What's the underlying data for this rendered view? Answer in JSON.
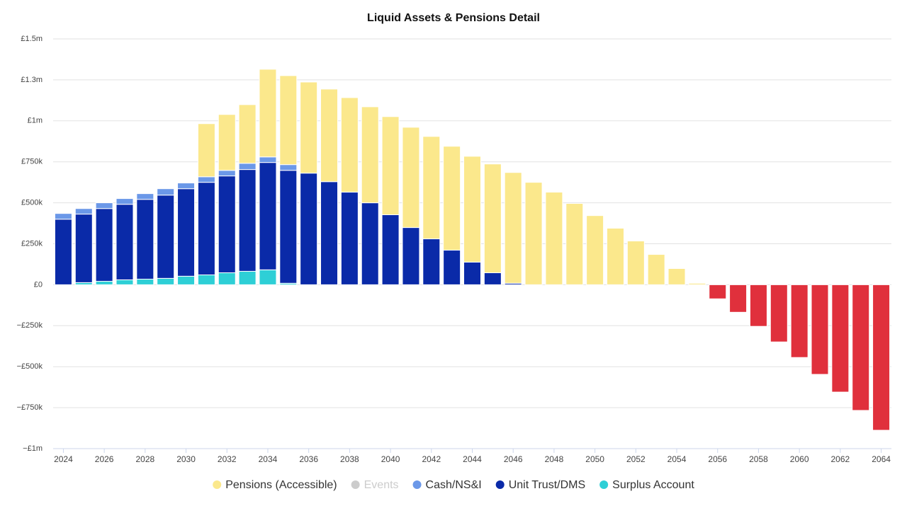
{
  "chart_data": {
    "type": "stacked_bar",
    "title": "Liquid Assets & Pensions Detail",
    "categories": [
      "2024",
      null,
      "2026",
      null,
      "2028",
      null,
      "2030",
      null,
      "2032",
      null,
      "2034",
      null,
      "2036",
      null,
      "2038",
      null,
      "2040",
      null,
      "2042",
      null,
      "2044",
      null,
      "2046",
      null,
      "2048",
      null,
      "2050",
      null,
      "2052",
      null,
      "2054",
      null,
      "2056",
      null,
      "2058",
      null,
      "2060",
      null,
      "2062",
      null,
      "2064"
    ],
    "ylim": [
      -1000000,
      1500000
    ],
    "yticks": [
      {
        "value": -1000000,
        "label": "−£1m"
      },
      {
        "value": -750000,
        "label": "−£750k"
      },
      {
        "value": -500000,
        "label": "−£500k"
      },
      {
        "value": -250000,
        "label": "−£250k"
      },
      {
        "value": 0,
        "label": "£0"
      },
      {
        "value": 250000,
        "label": "£250k"
      },
      {
        "value": 500000,
        "label": "£500k"
      },
      {
        "value": 750000,
        "label": "£750k"
      },
      {
        "value": 1000000,
        "label": "£1m"
      },
      {
        "value": 1250000,
        "label": "£1.3m"
      },
      {
        "value": 1500000,
        "label": "£1.5m"
      }
    ],
    "grid": true,
    "series": [
      {
        "name": "Pensions (Accessible)",
        "color": "#fbe88c",
        "values": [
          null,
          null,
          null,
          null,
          null,
          null,
          null,
          324000,
          341000,
          358000,
          535000,
          543000,
          556000,
          565000,
          577000,
          586000,
          599000,
          612000,
          625000,
          634000,
          646000,
          664000,
          676000,
          625000,
          565000,
          496000,
          422000,
          345000,
          267000,
          185000,
          99000,
          9000,
          null,
          null,
          null,
          null,
          null,
          null,
          null,
          null,
          null
        ]
      },
      {
        "name": "Events",
        "color": "#cccccc",
        "hidden": true,
        "values": [
          null,
          null,
          null,
          null,
          null,
          null,
          null,
          null,
          null,
          null,
          null,
          null,
          null,
          null,
          null,
          null,
          null,
          null,
          null,
          null,
          null,
          null,
          null,
          null,
          null,
          null,
          null,
          null,
          null,
          null,
          null,
          null,
          null,
          null,
          null,
          null,
          null,
          null,
          null,
          null,
          null
        ]
      },
      {
        "name": "Cash/NS&I",
        "color": "#6b98e8",
        "values": [
          35000,
          34000,
          35000,
          35000,
          35000,
          39000,
          35000,
          34000,
          34000,
          38000,
          34000,
          35000,
          null,
          null,
          null,
          null,
          null,
          null,
          null,
          null,
          null,
          null,
          null,
          null,
          null,
          null,
          null,
          null,
          null,
          null,
          null,
          null,
          null,
          null,
          null,
          null,
          null,
          null,
          null,
          null,
          null
        ]
      },
      {
        "name": "Unit Trust/DMS",
        "color": "#0a2aa8",
        "values": [
          400000,
          418000,
          444000,
          461000,
          487000,
          508000,
          534000,
          565000,
          591000,
          621000,
          655000,
          689000,
          681000,
          629000,
          565000,
          500000,
          427000,
          349000,
          280000,
          211000,
          138000,
          73000,
          9000,
          null,
          null,
          null,
          null,
          null,
          null,
          null,
          null,
          null,
          null,
          null,
          null,
          null,
          null,
          null,
          null,
          null,
          null
        ]
      },
      {
        "name": "Surplus Account",
        "color": "#2ecfd6",
        "values": [
          null,
          13000,
          21000,
          30000,
          34000,
          39000,
          52000,
          60000,
          73000,
          82000,
          91000,
          9000,
          null,
          null,
          null,
          null,
          null,
          null,
          null,
          null,
          null,
          null,
          null,
          null,
          null,
          null,
          null,
          null,
          null,
          null,
          null,
          null,
          null,
          null,
          null,
          null,
          null,
          null,
          null,
          null,
          null
        ]
      },
      {
        "color": "#e0303c",
        "values": [
          null,
          null,
          null,
          null,
          null,
          null,
          null,
          null,
          null,
          null,
          null,
          null,
          null,
          null,
          null,
          null,
          null,
          null,
          null,
          null,
          null,
          null,
          null,
          null,
          null,
          null,
          null,
          null,
          null,
          null,
          null,
          null,
          -86000,
          -168000,
          -254000,
          -349000,
          -444000,
          -547000,
          -655000,
          -767000,
          -888000
        ]
      }
    ]
  }
}
